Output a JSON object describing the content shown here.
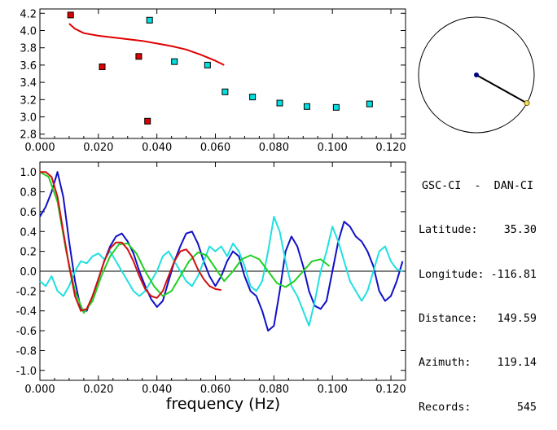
{
  "station": {
    "title": "GSC-CI  -  DAN-CI",
    "rows": [
      {
        "label": "Latitude:",
        "value": "35.30"
      },
      {
        "label": "Longitude:",
        "value": "-116.81"
      },
      {
        "label": "Distance:",
        "value": "149.59"
      },
      {
        "label": "Azimuth:",
        "value": "119.14"
      },
      {
        "label": "Records:",
        "value": "545"
      }
    ]
  },
  "chart_data": [
    {
      "type": "scatter",
      "title": "",
      "xlabel": "",
      "ylabel": "",
      "xlim": [
        0.0,
        0.125
      ],
      "ylim": [
        2.75,
        4.25
      ],
      "xticks": [
        "0.000",
        "0.020",
        "0.040",
        "0.060",
        "0.080",
        "0.100",
        "0.120"
      ],
      "yticks": [
        "2.8",
        "3.0",
        "3.2",
        "3.4",
        "3.6",
        "3.8",
        "4.0",
        "4.2"
      ],
      "grid": false,
      "series": [
        {
          "color": "#e00000",
          "marker": "square",
          "x": [
            0.0105,
            0.0213,
            0.0338,
            0.0368
          ],
          "y": [
            4.18,
            3.58,
            3.7,
            2.95
          ]
        },
        {
          "color": "#00e0e0",
          "marker": "square",
          "x": [
            0.0375,
            0.046,
            0.0573,
            0.0633,
            0.0727,
            0.082,
            0.0913,
            0.1013,
            0.1127
          ],
          "y": [
            4.12,
            3.64,
            3.6,
            3.29,
            3.23,
            3.16,
            3.12,
            3.11,
            3.15
          ]
        },
        {
          "color": "#e00000",
          "type": "line",
          "x": [
            0.01,
            0.012,
            0.015,
            0.02,
            0.025,
            0.03,
            0.035,
            0.04,
            0.045,
            0.05,
            0.055,
            0.06,
            0.063
          ],
          "y": [
            4.08,
            4.02,
            3.97,
            3.94,
            3.92,
            3.9,
            3.88,
            3.85,
            3.82,
            3.78,
            3.72,
            3.65,
            3.6
          ]
        }
      ]
    },
    {
      "type": "line",
      "title": "",
      "xlabel": "frequency (Hz)",
      "ylabel": "",
      "xlim": [
        0.0,
        0.125
      ],
      "ylim": [
        -1.1,
        1.1
      ],
      "xticks": [
        "0.000",
        "0.020",
        "0.040",
        "0.060",
        "0.080",
        "0.100",
        "0.120"
      ],
      "yticks": [
        "1.0",
        "0.8",
        "0.6",
        "0.4",
        "0.2",
        "0.0",
        "-0.2",
        "-0.4",
        "-0.6",
        "-0.8",
        "-1.0"
      ],
      "grid": false,
      "zero_line": true,
      "series": [
        {
          "color": "#1010c8",
          "x": [
            0.0,
            0.002,
            0.004,
            0.006,
            0.008,
            0.01,
            0.012,
            0.014,
            0.016,
            0.018,
            0.02,
            0.022,
            0.024,
            0.026,
            0.028,
            0.03,
            0.032,
            0.034,
            0.036,
            0.038,
            0.04,
            0.042,
            0.044,
            0.046,
            0.048,
            0.05,
            0.052,
            0.054,
            0.056,
            0.058,
            0.06,
            0.062,
            0.064,
            0.066,
            0.068,
            0.07,
            0.072,
            0.074,
            0.076,
            0.078,
            0.08,
            0.082,
            0.084,
            0.086,
            0.088,
            0.09,
            0.092,
            0.094,
            0.096,
            0.098,
            0.1,
            0.102,
            0.104,
            0.106,
            0.108,
            0.11,
            0.112,
            0.114,
            0.116,
            0.118,
            0.12,
            0.122,
            0.124
          ],
          "y": [
            0.55,
            0.65,
            0.8,
            1.0,
            0.75,
            0.3,
            -0.1,
            -0.38,
            -0.4,
            -0.25,
            -0.08,
            0.1,
            0.25,
            0.35,
            0.38,
            0.3,
            0.18,
            0.0,
            -0.15,
            -0.28,
            -0.36,
            -0.3,
            -0.1,
            0.1,
            0.25,
            0.38,
            0.4,
            0.28,
            0.1,
            -0.05,
            -0.15,
            -0.05,
            0.1,
            0.2,
            0.15,
            -0.05,
            -0.2,
            -0.25,
            -0.4,
            -0.6,
            -0.55,
            -0.2,
            0.2,
            0.35,
            0.25,
            0.05,
            -0.2,
            -0.35,
            -0.38,
            -0.3,
            0.0,
            0.3,
            0.5,
            0.45,
            0.35,
            0.3,
            0.2,
            0.05,
            -0.2,
            -0.3,
            -0.25,
            -0.1,
            0.1
          ]
        },
        {
          "color": "#20e0e0",
          "x": [
            0.0,
            0.002,
            0.004,
            0.006,
            0.008,
            0.01,
            0.012,
            0.014,
            0.016,
            0.018,
            0.02,
            0.022,
            0.024,
            0.026,
            0.028,
            0.03,
            0.032,
            0.034,
            0.036,
            0.038,
            0.04,
            0.042,
            0.044,
            0.046,
            0.048,
            0.05,
            0.052,
            0.054,
            0.056,
            0.058,
            0.06,
            0.062,
            0.064,
            0.066,
            0.068,
            0.07,
            0.072,
            0.074,
            0.076,
            0.078,
            0.08,
            0.082,
            0.084,
            0.086,
            0.088,
            0.09,
            0.092,
            0.094,
            0.096,
            0.098,
            0.1,
            0.102,
            0.104,
            0.106,
            0.108,
            0.11,
            0.112,
            0.114,
            0.116,
            0.118,
            0.12,
            0.122,
            0.124
          ],
          "y": [
            -0.1,
            -0.15,
            -0.05,
            -0.2,
            -0.25,
            -0.15,
            0.0,
            0.1,
            0.08,
            0.15,
            0.18,
            0.12,
            0.2,
            0.1,
            0.0,
            -0.1,
            -0.2,
            -0.25,
            -0.2,
            -0.1,
            0.0,
            0.15,
            0.2,
            0.1,
            0.0,
            -0.1,
            -0.15,
            -0.05,
            0.1,
            0.25,
            0.2,
            0.25,
            0.15,
            0.28,
            0.2,
            0.05,
            -0.15,
            -0.2,
            -0.1,
            0.2,
            0.55,
            0.4,
            0.1,
            -0.15,
            -0.25,
            -0.4,
            -0.55,
            -0.3,
            0.0,
            0.2,
            0.45,
            0.3,
            0.1,
            -0.1,
            -0.2,
            -0.3,
            -0.2,
            0.0,
            0.2,
            0.25,
            0.1,
            0.02,
            0.0
          ]
        },
        {
          "color": "#20d020",
          "x": [
            0.0,
            0.003,
            0.006,
            0.009,
            0.012,
            0.015,
            0.018,
            0.021,
            0.024,
            0.027,
            0.03,
            0.033,
            0.036,
            0.039,
            0.042,
            0.045,
            0.048,
            0.051,
            0.054,
            0.057,
            0.06,
            0.063,
            0.066,
            0.069,
            0.072,
            0.075,
            0.078,
            0.081,
            0.084,
            0.087,
            0.09,
            0.093,
            0.096,
            0.099
          ],
          "y": [
            1.0,
            0.95,
            0.7,
            0.2,
            -0.2,
            -0.42,
            -0.3,
            -0.05,
            0.15,
            0.27,
            0.28,
            0.18,
            0.0,
            -0.15,
            -0.25,
            -0.2,
            -0.05,
            0.1,
            0.19,
            0.16,
            0.03,
            -0.1,
            0.0,
            0.12,
            0.16,
            0.12,
            0.0,
            -0.12,
            -0.16,
            -0.1,
            0.0,
            0.1,
            0.12,
            0.05
          ]
        },
        {
          "color": "#d01010",
          "x": [
            0.0,
            0.002,
            0.004,
            0.006,
            0.008,
            0.01,
            0.012,
            0.014,
            0.016,
            0.018,
            0.02,
            0.022,
            0.024,
            0.026,
            0.028,
            0.03,
            0.032,
            0.034,
            0.036,
            0.038,
            0.04,
            0.042,
            0.044,
            0.046,
            0.048,
            0.05,
            0.052,
            0.054,
            0.056,
            0.058,
            0.06,
            0.062
          ],
          "y": [
            1.0,
            1.0,
            0.95,
            0.75,
            0.4,
            0.05,
            -0.25,
            -0.4,
            -0.38,
            -0.25,
            -0.08,
            0.1,
            0.23,
            0.29,
            0.29,
            0.22,
            0.1,
            -0.05,
            -0.18,
            -0.25,
            -0.27,
            -0.2,
            -0.05,
            0.1,
            0.2,
            0.22,
            0.15,
            0.02,
            -0.08,
            -0.15,
            -0.18,
            -0.19
          ]
        }
      ]
    }
  ],
  "azimuth_plot": {
    "azimuth_deg": 119.14,
    "line_color": "#000000",
    "center_color": "#000080",
    "end_color": "#f0e060"
  }
}
